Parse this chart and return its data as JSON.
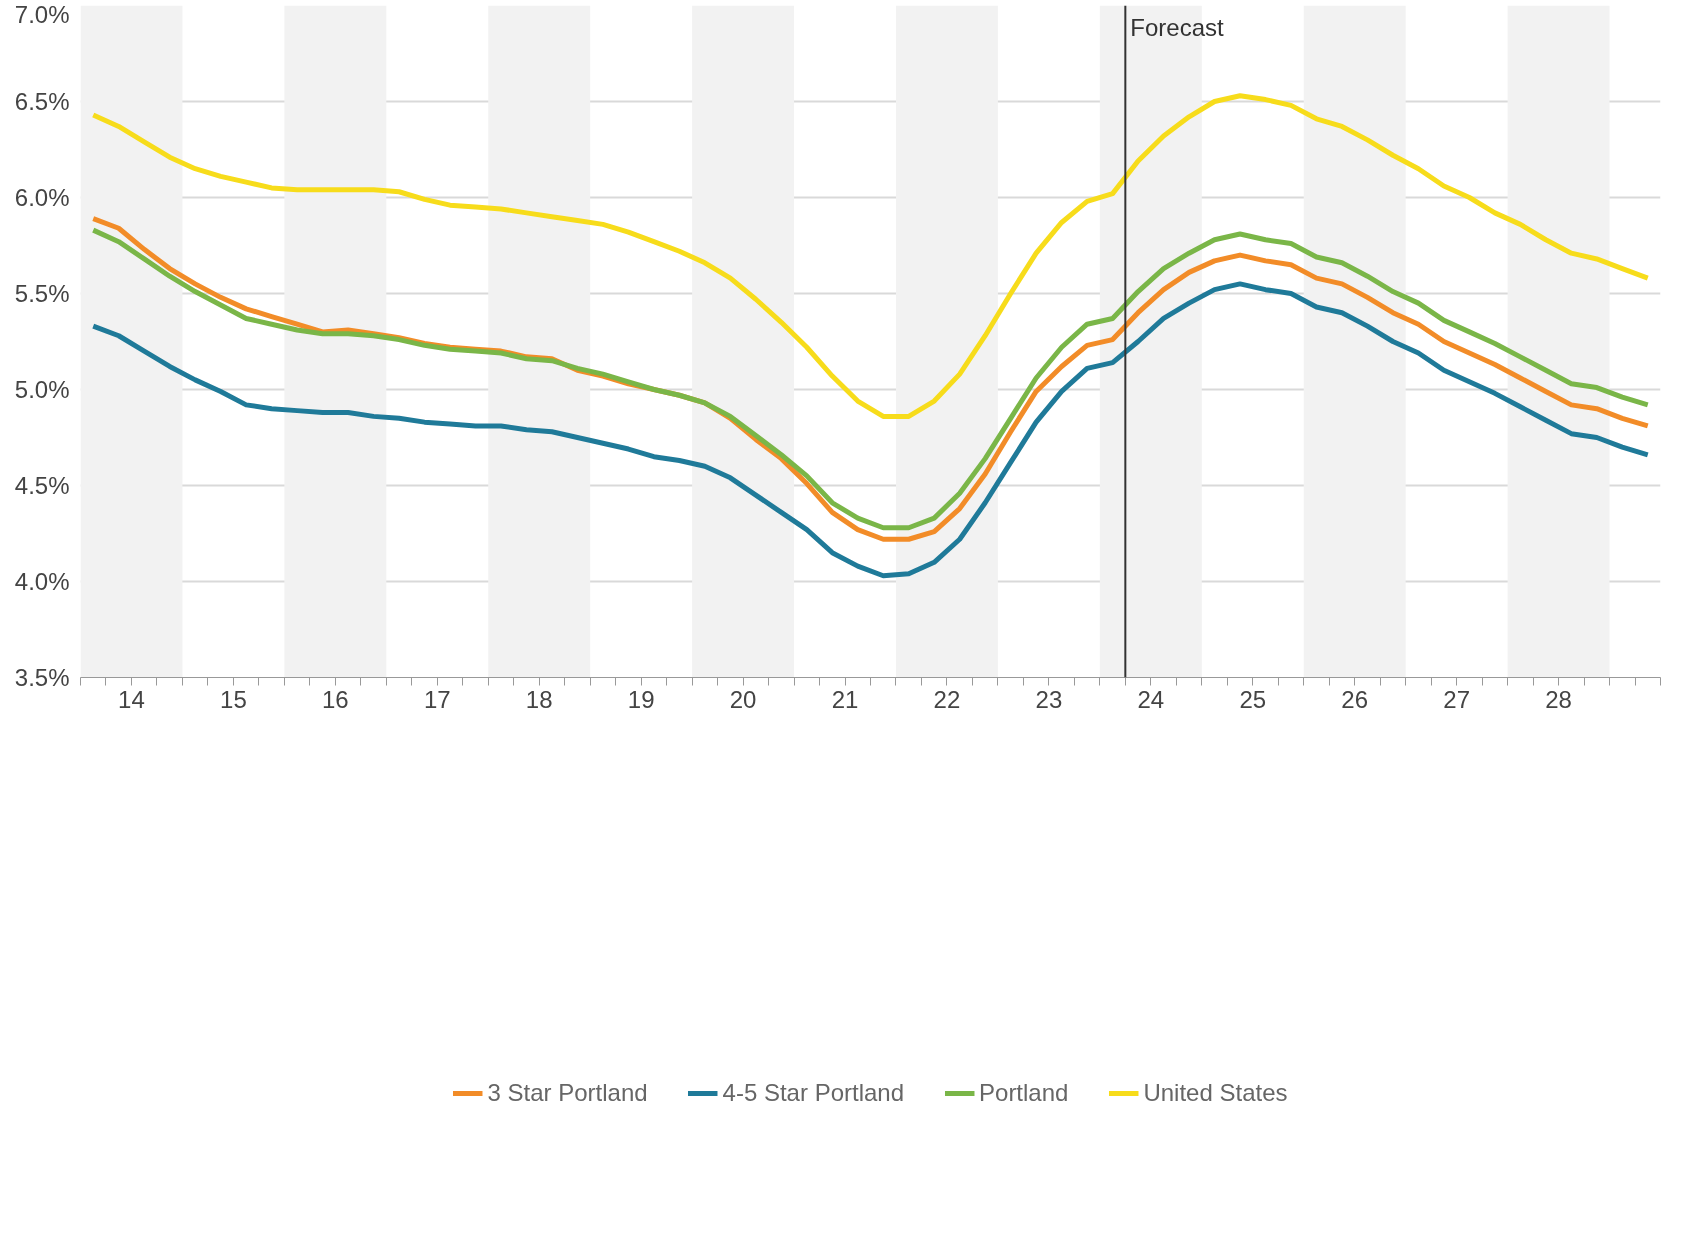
{
  "chart_data": {
    "type": "line",
    "x": [
      14.125,
      14.375,
      14.625,
      14.875,
      15.125,
      15.375,
      15.625,
      15.875,
      16.125,
      16.375,
      16.625,
      16.875,
      17.125,
      17.375,
      17.625,
      17.875,
      18.125,
      18.375,
      18.625,
      18.875,
      19.125,
      19.375,
      19.625,
      19.875,
      20.125,
      20.375,
      20.625,
      20.875,
      21.125,
      21.375,
      21.625,
      21.875,
      22.125,
      22.375,
      22.625,
      22.875,
      23.125,
      23.375,
      23.625,
      23.875,
      24.125,
      24.375,
      24.625,
      24.875,
      25.125,
      25.375,
      25.625,
      25.875,
      26.125,
      26.375,
      26.625,
      26.875,
      27.125,
      27.375,
      27.625,
      27.875,
      28.125,
      28.375,
      28.625,
      28.875,
      29.125,
      29.375
    ],
    "series": [
      {
        "name": "3 Star Portland",
        "color": "#f28c28",
        "values": [
          5.89,
          5.84,
          5.73,
          5.63,
          5.55,
          5.48,
          5.42,
          5.38,
          5.34,
          5.3,
          5.31,
          5.29,
          5.27,
          5.24,
          5.22,
          5.21,
          5.2,
          5.17,
          5.16,
          5.1,
          5.07,
          5.03,
          5.0,
          4.97,
          4.93,
          4.85,
          4.74,
          4.64,
          4.51,
          4.36,
          4.27,
          4.22,
          4.22,
          4.26,
          4.38,
          4.56,
          4.78,
          4.99,
          5.12,
          5.23,
          5.26,
          5.4,
          5.52,
          5.61,
          5.67,
          5.7,
          5.67,
          5.65,
          5.58,
          5.55,
          5.48,
          5.4,
          5.34,
          5.25,
          5.19,
          5.13,
          5.06,
          4.99,
          4.92,
          4.9,
          4.85,
          4.81
        ]
      },
      {
        "name": "4-5 Star Portland",
        "color": "#1f7a99",
        "values": [
          5.33,
          5.28,
          5.2,
          5.12,
          5.05,
          4.99,
          4.92,
          4.9,
          4.89,
          4.88,
          4.88,
          4.86,
          4.85,
          4.83,
          4.82,
          4.81,
          4.81,
          4.79,
          4.78,
          4.75,
          4.72,
          4.69,
          4.65,
          4.63,
          4.6,
          4.54,
          4.45,
          4.36,
          4.27,
          4.15,
          4.08,
          4.03,
          4.04,
          4.1,
          4.22,
          4.41,
          4.62,
          4.83,
          4.99,
          5.11,
          5.14,
          5.25,
          5.37,
          5.45,
          5.52,
          5.55,
          5.52,
          5.5,
          5.43,
          5.4,
          5.33,
          5.25,
          5.19,
          5.1,
          5.04,
          4.98,
          4.91,
          4.84,
          4.77,
          4.75,
          4.7,
          4.66
        ]
      },
      {
        "name": "Portland",
        "color": "#7ab648",
        "values": [
          5.83,
          5.77,
          5.68,
          5.59,
          5.51,
          5.44,
          5.37,
          5.34,
          5.31,
          5.29,
          5.29,
          5.28,
          5.26,
          5.23,
          5.21,
          5.2,
          5.19,
          5.16,
          5.15,
          5.11,
          5.08,
          5.04,
          5.0,
          4.97,
          4.93,
          4.86,
          4.76,
          4.66,
          4.55,
          4.41,
          4.33,
          4.28,
          4.28,
          4.33,
          4.46,
          4.64,
          4.85,
          5.06,
          5.22,
          5.34,
          5.37,
          5.51,
          5.63,
          5.71,
          5.78,
          5.81,
          5.78,
          5.76,
          5.69,
          5.66,
          5.59,
          5.51,
          5.45,
          5.36,
          5.3,
          5.24,
          5.17,
          5.1,
          5.03,
          5.01,
          4.96,
          4.92
        ]
      },
      {
        "name": "United States",
        "color": "#f7dc1b",
        "values": [
          6.43,
          6.37,
          6.29,
          6.21,
          6.15,
          6.11,
          6.08,
          6.05,
          6.04,
          6.04,
          6.04,
          6.04,
          6.03,
          5.99,
          5.96,
          5.95,
          5.94,
          5.92,
          5.9,
          5.88,
          5.86,
          5.82,
          5.77,
          5.72,
          5.66,
          5.58,
          5.47,
          5.35,
          5.22,
          5.07,
          4.94,
          4.86,
          4.86,
          4.94,
          5.08,
          5.28,
          5.5,
          5.71,
          5.87,
          5.98,
          6.02,
          6.19,
          6.32,
          6.42,
          6.5,
          6.53,
          6.51,
          6.48,
          6.41,
          6.37,
          6.3,
          6.22,
          6.15,
          6.06,
          6.0,
          5.92,
          5.86,
          5.78,
          5.71,
          5.68,
          5.63,
          5.58
        ]
      }
    ],
    "xlim": [
      14,
      29.5
    ],
    "xticks": [
      {
        "value": 14,
        "label": null
      },
      {
        "value": 14.5,
        "label": "14"
      },
      {
        "value": 15,
        "label": null
      },
      {
        "value": 15.5,
        "label": "15"
      },
      {
        "value": 16,
        "label": null
      },
      {
        "value": 16.5,
        "label": "16"
      },
      {
        "value": 17,
        "label": null
      },
      {
        "value": 17.5,
        "label": "17"
      },
      {
        "value": 18,
        "label": null
      },
      {
        "value": 18.5,
        "label": "18"
      },
      {
        "value": 19,
        "label": null
      },
      {
        "value": 19.5,
        "label": "19"
      },
      {
        "value": 20,
        "label": null
      },
      {
        "value": 20.5,
        "label": "20"
      },
      {
        "value": 21,
        "label": null
      },
      {
        "value": 21.5,
        "label": "21"
      },
      {
        "value": 22,
        "label": null
      },
      {
        "value": 22.5,
        "label": "22"
      },
      {
        "value": 23,
        "label": null
      },
      {
        "value": 23.5,
        "label": "23"
      },
      {
        "value": 24,
        "label": null
      },
      {
        "value": 24.5,
        "label": "24"
      },
      {
        "value": 25,
        "label": null
      },
      {
        "value": 25.5,
        "label": "25"
      },
      {
        "value": 26,
        "label": null
      },
      {
        "value": 26.5,
        "label": "26"
      },
      {
        "value": 27,
        "label": null
      },
      {
        "value": 27.5,
        "label": "27"
      },
      {
        "value": 28,
        "label": null
      },
      {
        "value": 28.5,
        "label": "28"
      },
      {
        "value": 29,
        "label": null
      }
    ],
    "ylim": [
      3.5,
      7.0
    ],
    "yticks": [
      {
        "value": 3.5,
        "label": "3.5%"
      },
      {
        "value": 4.0,
        "label": "4.0%"
      },
      {
        "value": 4.5,
        "label": "4.5%"
      },
      {
        "value": 5.0,
        "label": "5.0%"
      },
      {
        "value": 5.5,
        "label": "5.5%"
      },
      {
        "value": 6.0,
        "label": "6.0%"
      },
      {
        "value": 6.5,
        "label": "6.5%"
      },
      {
        "value": 7.0,
        "label": "7.0%"
      }
    ],
    "ref_lines": [
      {
        "axis": "x",
        "value": 24.25,
        "label": "Forecast",
        "color": "#333333"
      }
    ],
    "bands": [
      {
        "axis": "x",
        "from": 14,
        "to": 15,
        "label": null,
        "color": "#f2f2f2"
      },
      {
        "axis": "x",
        "from": 16,
        "to": 17,
        "label": null,
        "color": "#f2f2f2"
      },
      {
        "axis": "x",
        "from": 18,
        "to": 19,
        "label": null,
        "color": "#f2f2f2"
      },
      {
        "axis": "x",
        "from": 20,
        "to": 21,
        "label": null,
        "color": "#f2f2f2"
      },
      {
        "axis": "x",
        "from": 22,
        "to": 23,
        "label": null,
        "color": "#f2f2f2"
      },
      {
        "axis": "x",
        "from": 24,
        "to": 25,
        "label": null,
        "color": "#f2f2f2"
      },
      {
        "axis": "x",
        "from": 26,
        "to": 27,
        "label": null,
        "color": "#f2f2f2"
      },
      {
        "axis": "x",
        "from": 28,
        "to": 29,
        "label": null,
        "color": "#f2f2f2"
      }
    ],
    "grid": "y",
    "legend": "bottom",
    "marker": "none",
    "line_style": "solid"
  }
}
